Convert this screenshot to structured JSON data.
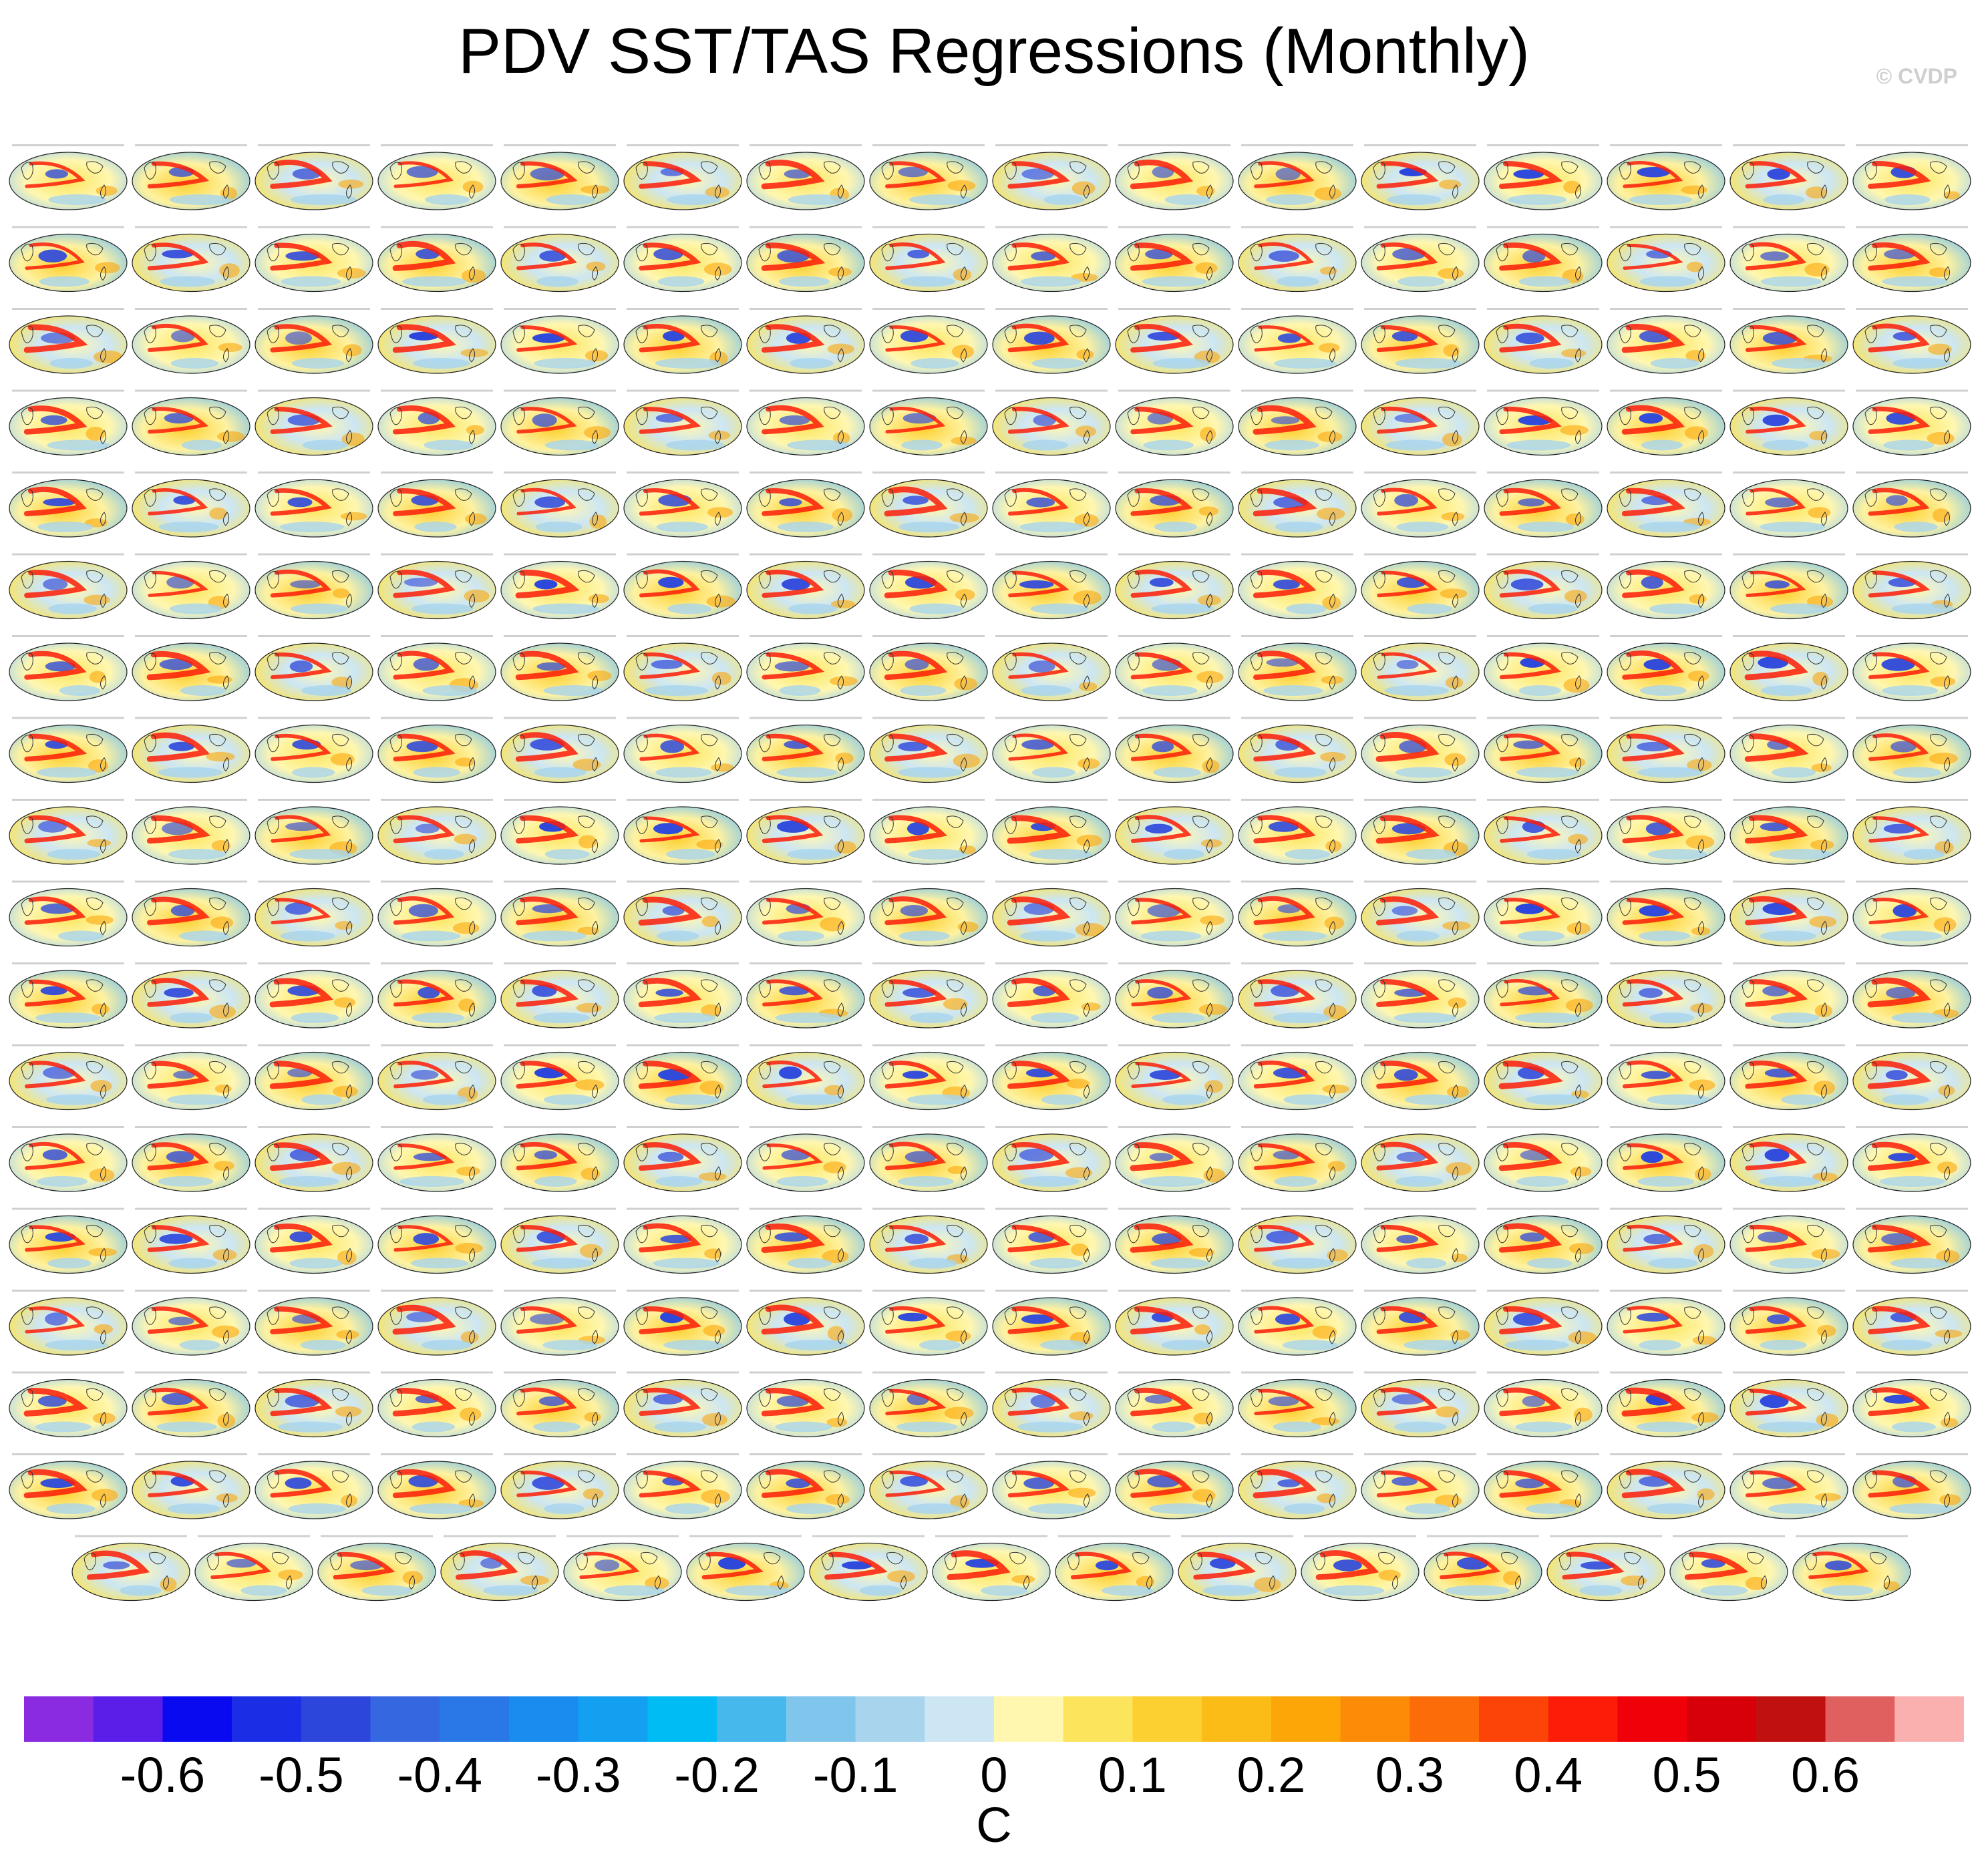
{
  "title": "PDV SST/TAS Regressions (Monthly)",
  "credit": "© CVDP",
  "chart_data": {
    "type": "heatmap",
    "title": "PDV SST/TAS Regressions (Monthly)",
    "panel_grid": {
      "rows_full": 17,
      "cols_full": 16,
      "last_row_panels": 15,
      "total_panels": 287
    },
    "colorbar": {
      "units": "C",
      "tick_labels": [
        "-0.6",
        "-0.5",
        "-0.4",
        "-0.3",
        "-0.2",
        "-0.1",
        "0",
        "0.1",
        "0.2",
        "0.3",
        "0.4",
        "0.5",
        "0.6"
      ],
      "levels": [
        -0.65,
        -0.6,
        -0.55,
        -0.5,
        -0.45,
        -0.4,
        -0.35,
        -0.3,
        -0.25,
        -0.2,
        -0.15,
        -0.1,
        -0.05,
        0,
        0.05,
        0.1,
        0.15,
        0.2,
        0.25,
        0.3,
        0.35,
        0.4,
        0.45,
        0.5,
        0.55,
        0.6,
        0.65
      ],
      "colors": [
        "#8a2be2",
        "#5a1ee8",
        "#0a0af0",
        "#1c2de6",
        "#2c46dc",
        "#3568e0",
        "#2a78e8",
        "#1a8cf0",
        "#14a0f0",
        "#00bcf4",
        "#46b8ec",
        "#80c6ec",
        "#a8d4ee",
        "#cce6f4",
        "#fff7b0",
        "#fce55c",
        "#fcd030",
        "#fcbc18",
        "#fca608",
        "#fc8c08",
        "#fc6c08",
        "#fc4408",
        "#fc1c08",
        "#f00008",
        "#d80008",
        "#c01010",
        "#e06060",
        "#fbb0b0"
      ]
    },
    "panel_colors": {
      "cold_north_pacific": "#2c46dc",
      "warm_tropical_pacific": "#fc1c08",
      "background_warm": "#fce55c",
      "background_cool": "#a8d4ee"
    }
  }
}
